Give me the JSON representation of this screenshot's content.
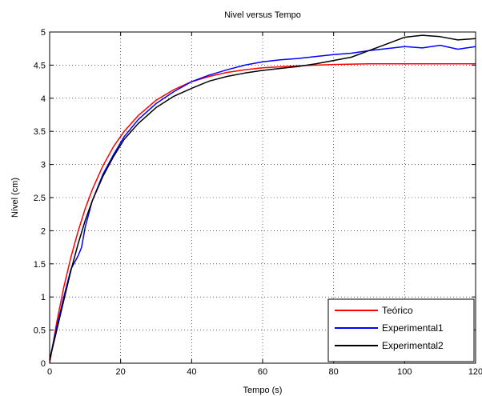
{
  "chart_data": {
    "type": "line",
    "title": "Nivel versus Tempo",
    "xlabel": "Tempo (s)",
    "ylabel": "Nível (cm)",
    "xlim": [
      0,
      120
    ],
    "ylim": [
      0,
      5
    ],
    "xticks": [
      "0",
      "20",
      "40",
      "60",
      "80",
      "100",
      "120"
    ],
    "yticks": [
      "0",
      "0.5",
      "1",
      "1.5",
      "2",
      "2.5",
      "3",
      "3.5",
      "4",
      "4.5",
      "5"
    ],
    "grid": true,
    "legend_position": "bottom-right",
    "series": [
      {
        "name": "Teórico",
        "color": "#ff0000",
        "x": [
          0,
          2,
          4,
          6,
          8,
          10,
          12,
          15,
          18,
          21,
          25,
          30,
          35,
          40,
          45,
          50,
          55,
          60,
          70,
          80,
          90,
          100,
          110,
          120
        ],
        "y": [
          0,
          0.62,
          1.15,
          1.6,
          1.99,
          2.33,
          2.62,
          2.98,
          3.27,
          3.5,
          3.74,
          3.97,
          4.13,
          4.25,
          4.33,
          4.39,
          4.43,
          4.46,
          4.49,
          4.51,
          4.52,
          4.52,
          4.52,
          4.52
        ]
      },
      {
        "name": "Experimental1",
        "color": "#0000ff",
        "x": [
          0,
          2,
          4,
          6,
          8,
          9,
          10,
          12,
          15,
          18,
          21,
          25,
          30,
          35,
          40,
          45,
          50,
          55,
          60,
          65,
          70,
          75,
          80,
          85,
          90,
          95,
          100,
          105,
          110,
          115,
          120
        ],
        "y": [
          0.05,
          0.55,
          1.0,
          1.42,
          1.62,
          1.75,
          2.05,
          2.45,
          2.85,
          3.15,
          3.42,
          3.68,
          3.92,
          4.1,
          4.25,
          4.35,
          4.43,
          4.5,
          4.55,
          4.58,
          4.6,
          4.63,
          4.66,
          4.68,
          4.72,
          4.75,
          4.78,
          4.76,
          4.8,
          4.74,
          4.78
        ]
      },
      {
        "name": "Experimental2",
        "color": "#000000",
        "x": [
          0,
          2,
          4,
          6,
          8,
          10,
          12,
          15,
          18,
          21,
          25,
          30,
          35,
          40,
          45,
          50,
          55,
          60,
          65,
          70,
          75,
          80,
          85,
          90,
          95,
          100,
          105,
          110,
          115,
          120
        ],
        "y": [
          0.05,
          0.5,
          0.95,
          1.4,
          1.8,
          2.15,
          2.45,
          2.82,
          3.12,
          3.38,
          3.62,
          3.86,
          4.03,
          4.15,
          4.26,
          4.33,
          4.38,
          4.42,
          4.45,
          4.48,
          4.52,
          4.57,
          4.62,
          4.72,
          4.82,
          4.92,
          4.95,
          4.93,
          4.88,
          4.9
        ]
      }
    ]
  }
}
